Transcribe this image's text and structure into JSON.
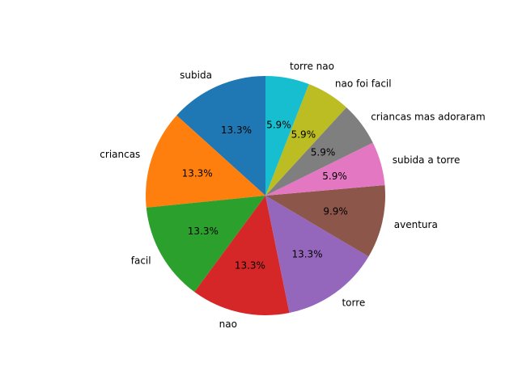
{
  "chart_data": {
    "type": "pie",
    "start_angle_deg": 90,
    "direction": "counterclockwise",
    "legend": "none",
    "slices": [
      {
        "label": "subida",
        "value": 13.3,
        "pct_label": "13.3%",
        "color": "#1f77b4"
      },
      {
        "label": "criancas",
        "value": 13.3,
        "pct_label": "13.3%",
        "color": "#ff7f0e"
      },
      {
        "label": "facil",
        "value": 13.3,
        "pct_label": "13.3%",
        "color": "#2ca02c"
      },
      {
        "label": "nao",
        "value": 13.3,
        "pct_label": "13.3%",
        "color": "#d62728"
      },
      {
        "label": "torre",
        "value": 13.3,
        "pct_label": "13.3%",
        "color": "#9467bd"
      },
      {
        "label": "aventura",
        "value": 9.9,
        "pct_label": "9.9%",
        "color": "#8c564b"
      },
      {
        "label": "subida a torre",
        "value": 5.9,
        "pct_label": "5.9%",
        "color": "#e377c2"
      },
      {
        "label": "criancas mas adoraram",
        "value": 5.9,
        "pct_label": "5.9%",
        "color": "#7f7f7f"
      },
      {
        "label": "nao foi facil",
        "value": 5.9,
        "pct_label": "5.9%",
        "color": "#bcbd22"
      },
      {
        "label": "torre nao",
        "value": 5.9,
        "pct_label": "5.9%",
        "color": "#17becf"
      }
    ]
  }
}
